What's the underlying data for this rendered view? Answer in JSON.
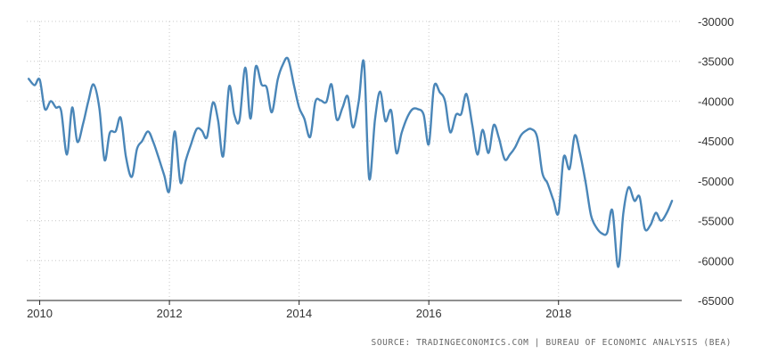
{
  "colors": {
    "line": "#4a86b8",
    "grid": "#c8c8c8",
    "axis": "#222222",
    "text": "#333333",
    "source_text": "#666666"
  },
  "source_label": "SOURCE: TRADINGECONOMICS.COM | BUREAU OF ECONOMIC ANALYSIS (BEA)",
  "chart_data": {
    "type": "line",
    "title": "",
    "xlabel": "",
    "ylabel": "",
    "x_ticks": [
      "2010",
      "2012",
      "2014",
      "2016",
      "2018"
    ],
    "y_ticks": [
      "-30000",
      "-35000",
      "-40000",
      "-45000",
      "-50000",
      "-55000",
      "-60000",
      "-65000"
    ],
    "xlim": [
      2009.8,
      2019.9
    ],
    "ylim": [
      -65000,
      -30000
    ],
    "grid": true,
    "y_axis_side": "right",
    "series": [
      {
        "values_unit": "monthly",
        "x": [
          2009.83,
          2009.92,
          2010.0,
          2010.08,
          2010.17,
          2010.25,
          2010.33,
          2010.42,
          2010.5,
          2010.58,
          2010.67,
          2010.75,
          2010.83,
          2010.92,
          2011.0,
          2011.08,
          2011.17,
          2011.25,
          2011.33,
          2011.42,
          2011.5,
          2011.58,
          2011.67,
          2011.75,
          2011.83,
          2011.92,
          2012.0,
          2012.08,
          2012.17,
          2012.25,
          2012.33,
          2012.42,
          2012.5,
          2012.58,
          2012.67,
          2012.75,
          2012.83,
          2012.92,
          2013.0,
          2013.08,
          2013.17,
          2013.25,
          2013.33,
          2013.42,
          2013.5,
          2013.58,
          2013.67,
          2013.75,
          2013.83,
          2013.92,
          2014.0,
          2014.08,
          2014.17,
          2014.25,
          2014.33,
          2014.42,
          2014.5,
          2014.58,
          2014.67,
          2014.75,
          2014.83,
          2014.92,
          2015.0,
          2015.08,
          2015.17,
          2015.25,
          2015.33,
          2015.42,
          2015.5,
          2015.58,
          2015.67,
          2015.75,
          2015.83,
          2015.92,
          2016.0,
          2016.08,
          2016.17,
          2016.25,
          2016.33,
          2016.42,
          2016.5,
          2016.58,
          2016.67,
          2016.75,
          2016.83,
          2016.92,
          2017.0,
          2017.08,
          2017.17,
          2017.25,
          2017.33,
          2017.42,
          2017.5,
          2017.58,
          2017.67,
          2017.75,
          2017.83,
          2017.92,
          2018.0,
          2018.08,
          2018.17,
          2018.25,
          2018.33,
          2018.42,
          2018.5,
          2018.58,
          2018.67,
          2018.75,
          2018.83,
          2018.92,
          2019.0,
          2019.08,
          2019.17,
          2019.25,
          2019.33,
          2019.42,
          2019.5,
          2019.58,
          2019.67,
          2019.75
        ],
        "values": [
          -37200,
          -38000,
          -37300,
          -41000,
          -40000,
          -40800,
          -41200,
          -46700,
          -40800,
          -45100,
          -42800,
          -40000,
          -37900,
          -40900,
          -47400,
          -44000,
          -43800,
          -42100,
          -47000,
          -49500,
          -46000,
          -45000,
          -43800,
          -45100,
          -47000,
          -49300,
          -51200,
          -43800,
          -50200,
          -47500,
          -45500,
          -43500,
          -43700,
          -44500,
          -40200,
          -42400,
          -46900,
          -38200,
          -41700,
          -42400,
          -35800,
          -42200,
          -35700,
          -37900,
          -38300,
          -41400,
          -37300,
          -35400,
          -34700,
          -38000,
          -40800,
          -42200,
          -44500,
          -40100,
          -39900,
          -40100,
          -37900,
          -42300,
          -40800,
          -39400,
          -43300,
          -40000,
          -35200,
          -49700,
          -42300,
          -38800,
          -42500,
          -41200,
          -46500,
          -44000,
          -42000,
          -41000,
          -41000,
          -41700,
          -45400,
          -38200,
          -38900,
          -40000,
          -43900,
          -41700,
          -41600,
          -39100,
          -43000,
          -46700,
          -43600,
          -46500,
          -43000,
          -44600,
          -47300,
          -46700,
          -45800,
          -44300,
          -43700,
          -43500,
          -44500,
          -49000,
          -50300,
          -52400,
          -54000,
          -47000,
          -48500,
          -44300,
          -46500,
          -50300,
          -54300,
          -55800,
          -56600,
          -56500,
          -53700,
          -60800,
          -54000,
          -50800,
          -52500,
          -52000,
          -56000,
          -55500,
          -54000,
          -55000,
          -54000,
          -52500
        ]
      }
    ]
  }
}
